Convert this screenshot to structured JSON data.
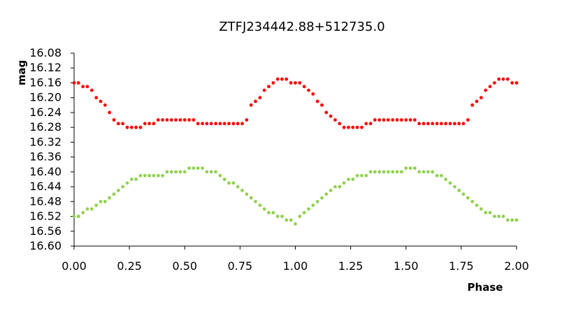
{
  "chart_data": {
    "type": "scatter",
    "title": "ZTFJ234442.88+512735.0",
    "xlabel": "Phase",
    "ylabel": "mag",
    "xlim": [
      0,
      2
    ],
    "ylim": [
      16.08,
      16.6
    ],
    "y_inverted": true,
    "grid": false,
    "legend": "none",
    "x_ticks": [
      "0.00",
      "0.25",
      "0.50",
      "0.75",
      "1.00",
      "1.25",
      "1.50",
      "1.75",
      "2.00"
    ],
    "y_ticks": [
      "16.08",
      "16.12",
      "16.16",
      "16.20",
      "16.24",
      "16.28",
      "16.32",
      "16.36",
      "16.40",
      "16.44",
      "16.48",
      "16.52",
      "16.56",
      "16.60"
    ],
    "series": [
      {
        "color": "#ff0000",
        "x": [
          0.0,
          0.02,
          0.04,
          0.06,
          0.08,
          0.1,
          0.12,
          0.14,
          0.16,
          0.18,
          0.2,
          0.22,
          0.24,
          0.26,
          0.28,
          0.3,
          0.32,
          0.34,
          0.36,
          0.38,
          0.4,
          0.42,
          0.44,
          0.46,
          0.48,
          0.5,
          0.52,
          0.54,
          0.56,
          0.58,
          0.6,
          0.62,
          0.64,
          0.66,
          0.68,
          0.7,
          0.72,
          0.74,
          0.76,
          0.78,
          0.8,
          0.82,
          0.84,
          0.86,
          0.88,
          0.9,
          0.92,
          0.94,
          0.96,
          0.98,
          1.0,
          1.02,
          1.04,
          1.06,
          1.08,
          1.1,
          1.12,
          1.14,
          1.16,
          1.18,
          1.2,
          1.22,
          1.24,
          1.26,
          1.28,
          1.3,
          1.32,
          1.34,
          1.36,
          1.38,
          1.4,
          1.42,
          1.44,
          1.46,
          1.48,
          1.5,
          1.52,
          1.54,
          1.56,
          1.58,
          1.6,
          1.62,
          1.64,
          1.66,
          1.68,
          1.7,
          1.72,
          1.74,
          1.76,
          1.78,
          1.8,
          1.82,
          1.84,
          1.86,
          1.88,
          1.9,
          1.92,
          1.94,
          1.96,
          1.98,
          2.0
        ],
        "y": [
          16.16,
          16.16,
          16.17,
          16.17,
          16.18,
          16.2,
          16.21,
          16.22,
          16.24,
          16.26,
          16.27,
          16.27,
          16.28,
          16.28,
          16.28,
          16.28,
          16.27,
          16.27,
          16.27,
          16.26,
          16.26,
          16.26,
          16.26,
          16.26,
          16.26,
          16.26,
          16.26,
          16.26,
          16.27,
          16.27,
          16.27,
          16.27,
          16.27,
          16.27,
          16.27,
          16.27,
          16.27,
          16.27,
          16.27,
          16.26,
          16.22,
          16.21,
          16.2,
          16.18,
          16.17,
          16.16,
          16.15,
          16.15,
          16.15,
          16.16,
          16.16,
          16.16,
          16.17,
          16.18,
          16.19,
          16.21,
          16.22,
          16.24,
          16.25,
          16.26,
          16.27,
          16.28,
          16.28,
          16.28,
          16.28,
          16.28,
          16.27,
          16.27,
          16.26,
          16.26,
          16.26,
          16.26,
          16.26,
          16.26,
          16.26,
          16.26,
          16.26,
          16.26,
          16.27,
          16.27,
          16.27,
          16.27,
          16.27,
          16.27,
          16.27,
          16.27,
          16.27,
          16.27,
          16.27,
          16.26,
          16.22,
          16.21,
          16.2,
          16.18,
          16.17,
          16.16,
          16.15,
          16.15,
          16.15,
          16.16,
          16.16
        ]
      },
      {
        "color": "#92d050",
        "x": [
          0.0,
          0.02,
          0.04,
          0.06,
          0.08,
          0.1,
          0.12,
          0.14,
          0.16,
          0.18,
          0.2,
          0.22,
          0.24,
          0.26,
          0.28,
          0.3,
          0.32,
          0.34,
          0.36,
          0.38,
          0.4,
          0.42,
          0.44,
          0.46,
          0.48,
          0.5,
          0.52,
          0.54,
          0.56,
          0.58,
          0.6,
          0.62,
          0.64,
          0.66,
          0.68,
          0.7,
          0.72,
          0.74,
          0.76,
          0.78,
          0.8,
          0.82,
          0.84,
          0.86,
          0.88,
          0.9,
          0.92,
          0.94,
          0.96,
          0.98,
          1.0,
          1.02,
          1.04,
          1.06,
          1.08,
          1.1,
          1.12,
          1.14,
          1.16,
          1.18,
          1.2,
          1.22,
          1.24,
          1.26,
          1.28,
          1.3,
          1.32,
          1.34,
          1.36,
          1.38,
          1.4,
          1.42,
          1.44,
          1.46,
          1.48,
          1.5,
          1.52,
          1.54,
          1.56,
          1.58,
          1.6,
          1.62,
          1.64,
          1.66,
          1.68,
          1.7,
          1.72,
          1.74,
          1.76,
          1.78,
          1.8,
          1.82,
          1.84,
          1.86,
          1.88,
          1.9,
          1.92,
          1.94,
          1.96,
          1.98,
          2.0
        ],
        "y": [
          16.52,
          16.52,
          16.51,
          16.5,
          16.5,
          16.49,
          16.48,
          16.48,
          16.47,
          16.46,
          16.45,
          16.44,
          16.43,
          16.42,
          16.42,
          16.41,
          16.41,
          16.41,
          16.41,
          16.41,
          16.41,
          16.4,
          16.4,
          16.4,
          16.4,
          16.4,
          16.39,
          16.39,
          16.39,
          16.39,
          16.4,
          16.4,
          16.4,
          16.41,
          16.42,
          16.43,
          16.43,
          16.44,
          16.45,
          16.46,
          16.47,
          16.48,
          16.49,
          16.5,
          16.51,
          16.51,
          16.52,
          16.52,
          16.53,
          16.53,
          16.54,
          16.52,
          16.51,
          16.5,
          16.49,
          16.48,
          16.47,
          16.46,
          16.45,
          16.44,
          16.44,
          16.43,
          16.42,
          16.42,
          16.41,
          16.41,
          16.41,
          16.4,
          16.4,
          16.4,
          16.4,
          16.4,
          16.4,
          16.4,
          16.4,
          16.39,
          16.39,
          16.39,
          16.4,
          16.4,
          16.4,
          16.4,
          16.41,
          16.41,
          16.42,
          16.43,
          16.44,
          16.45,
          16.46,
          16.47,
          16.48,
          16.49,
          16.5,
          16.51,
          16.51,
          16.52,
          16.52,
          16.52,
          16.53,
          16.53,
          16.53
        ]
      }
    ]
  }
}
